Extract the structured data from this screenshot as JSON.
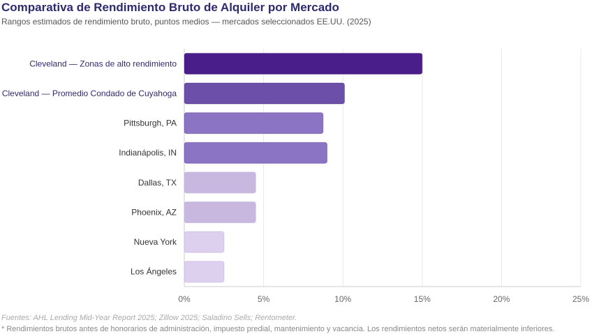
{
  "chart_data": {
    "type": "bar",
    "orientation": "horizontal",
    "title": "Comparativa de Rendimiento Bruto de Alquiler por Mercado",
    "subtitle": "Rangos estimados de rendimiento bruto, puntos medios — mercados seleccionados EE.UU. (2025)",
    "categories": [
      "Cleveland — Zonas de alto rendimiento",
      "Cleveland — Promedio Condado de Cuyahoga",
      "Pittsburgh, PA",
      "Indianápolis, IN",
      "Dallas, TX",
      "Phoenix, AZ",
      "Nueva York",
      "Los Ángeles"
    ],
    "values": [
      15,
      10.1,
      8.75,
      9.0,
      4.5,
      4.5,
      2.5,
      2.5
    ],
    "colors": [
      "#4a1e8a",
      "#6b4fa8",
      "#8b74c4",
      "#8b74c4",
      "#c8b8e0",
      "#c8b8e0",
      "#ddd0ef",
      "#ddd0ef"
    ],
    "label_colors": [
      "#2e2a6e",
      "#2e2a6e",
      "#333333",
      "#333333",
      "#333333",
      "#333333",
      "#333333",
      "#333333"
    ],
    "xlim": [
      0,
      25
    ],
    "xticks": [
      0,
      5,
      10,
      15,
      20,
      25
    ],
    "xtick_labels": [
      "0%",
      "5%",
      "10%",
      "15%",
      "20%",
      "25%"
    ],
    "xlabel": "",
    "ylabel": "",
    "grid": true
  },
  "footer": {
    "sources": "Fuentes: AHL Lending Mid-Year Report 2025; Zillow 2025; Saladino Sells; Rentometer.",
    "note": "* Rendimientos brutos antes de honorarios de administración, impuesto predial, mantenimiento y vacancia. Los rendimientos netos serán materialmente inferiores."
  }
}
